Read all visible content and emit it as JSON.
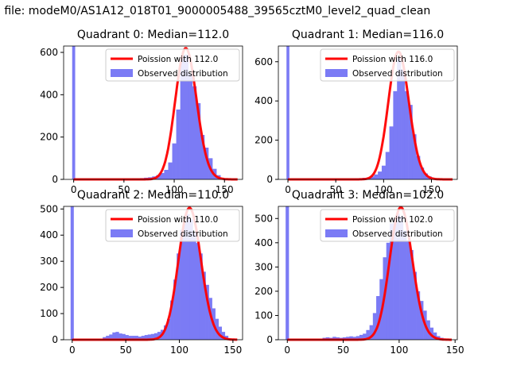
{
  "figure": {
    "suptitle": "n file: modeM0/AS1A12_018T01_9000005488_39565cztM0_level2_quad_clean"
  },
  "colors": {
    "hist": "#7b7bf5",
    "fit": "#ff0000",
    "axis": "#000000"
  },
  "chart_data": [
    {
      "type": "bar",
      "title": "Quadrant 0: Median=112.0",
      "xlim": [
        -10,
        168
      ],
      "ylim": [
        0,
        630
      ],
      "xticks": [
        0,
        50,
        100,
        150
      ],
      "yticks": [
        0,
        200,
        400,
        600
      ],
      "legend": {
        "placement": "top-right",
        "entries": [
          "Poission with 112.0",
          "Observed distribution"
        ]
      },
      "median": 112.0,
      "bin_width": 4,
      "spike": {
        "x": 0,
        "value": 630
      },
      "hist": [
        [
          60,
          3
        ],
        [
          64,
          4
        ],
        [
          68,
          6
        ],
        [
          72,
          8
        ],
        [
          76,
          10
        ],
        [
          80,
          14
        ],
        [
          84,
          20
        ],
        [
          88,
          30
        ],
        [
          92,
          45
        ],
        [
          96,
          80
        ],
        [
          100,
          170
        ],
        [
          104,
          330
        ],
        [
          108,
          580
        ],
        [
          112,
          590
        ],
        [
          116,
          500
        ],
        [
          120,
          440
        ],
        [
          124,
          360
        ],
        [
          128,
          210
        ],
        [
          132,
          150
        ],
        [
          136,
          100
        ],
        [
          140,
          50
        ],
        [
          144,
          20
        ],
        [
          148,
          6
        ]
      ],
      "fit_series": "Poission with 112.0"
    },
    {
      "type": "bar",
      "title": "Quadrant 1: Median=116.0",
      "xlim": [
        -10,
        177
      ],
      "ylim": [
        0,
        680
      ],
      "xticks": [
        0,
        50,
        100,
        150
      ],
      "yticks": [
        0,
        200,
        400,
        600
      ],
      "legend": {
        "placement": "top-right",
        "entries": [
          "Poission with 116.0",
          "Observed distribution"
        ]
      },
      "median": 116.0,
      "bin_width": 4,
      "spike": {
        "x": 0,
        "value": 680
      },
      "hist": [
        [
          68,
          3
        ],
        [
          72,
          5
        ],
        [
          76,
          6
        ],
        [
          80,
          8
        ],
        [
          84,
          10
        ],
        [
          88,
          15
        ],
        [
          92,
          25
        ],
        [
          96,
          40
        ],
        [
          100,
          70
        ],
        [
          104,
          140
        ],
        [
          108,
          270
        ],
        [
          112,
          450
        ],
        [
          116,
          620
        ],
        [
          120,
          560
        ],
        [
          124,
          450
        ],
        [
          128,
          380
        ],
        [
          132,
          230
        ],
        [
          136,
          120
        ],
        [
          140,
          60
        ],
        [
          144,
          30
        ],
        [
          148,
          15
        ]
      ],
      "fit_series": "Poission with 116.0"
    },
    {
      "type": "bar",
      "title": "Quadrant 2: Median=110.0",
      "xlim": [
        -8,
        159
      ],
      "ylim": [
        0,
        510
      ],
      "xticks": [
        0,
        50,
        100,
        150
      ],
      "yticks": [
        0,
        100,
        200,
        300,
        400,
        500
      ],
      "legend": {
        "placement": "top-right",
        "entries": [
          "Poission with 110.0",
          "Observed distribution"
        ]
      },
      "median": 110.0,
      "bin_width": 3,
      "spike": {
        "x": 0,
        "value": 510
      },
      "hist": [
        [
          30,
          10
        ],
        [
          33,
          15
        ],
        [
          36,
          20
        ],
        [
          39,
          28
        ],
        [
          42,
          30
        ],
        [
          45,
          24
        ],
        [
          48,
          22
        ],
        [
          51,
          18
        ],
        [
          54,
          15
        ],
        [
          57,
          15
        ],
        [
          60,
          15
        ],
        [
          63,
          12
        ],
        [
          66,
          15
        ],
        [
          69,
          18
        ],
        [
          72,
          20
        ],
        [
          75,
          22
        ],
        [
          78,
          25
        ],
        [
          81,
          30
        ],
        [
          84,
          38
        ],
        [
          87,
          55
        ],
        [
          90,
          80
        ],
        [
          93,
          150
        ],
        [
          96,
          230
        ],
        [
          99,
          330
        ],
        [
          102,
          420
        ],
        [
          105,
          450
        ],
        [
          108,
          480
        ],
        [
          111,
          460
        ],
        [
          114,
          410
        ],
        [
          117,
          370
        ],
        [
          120,
          330
        ],
        [
          123,
          260
        ],
        [
          126,
          210
        ],
        [
          129,
          160
        ],
        [
          132,
          120
        ],
        [
          135,
          80
        ],
        [
          138,
          50
        ],
        [
          141,
          30
        ],
        [
          144,
          15
        ],
        [
          147,
          5
        ]
      ],
      "fit_series": "Poission with 110.0"
    },
    {
      "type": "bar",
      "title": "Quadrant 3: Median=102.0",
      "xlim": [
        -8,
        152
      ],
      "ylim": [
        0,
        550
      ],
      "xticks": [
        0,
        50,
        100,
        150
      ],
      "yticks": [
        0,
        100,
        200,
        300,
        400,
        500
      ],
      "legend": {
        "placement": "top-right",
        "entries": [
          "Poission with 102.0",
          "Observed distribution"
        ]
      },
      "median": 102.0,
      "bin_width": 3,
      "spike": {
        "x": 0,
        "value": 550
      },
      "hist": [
        [
          33,
          8
        ],
        [
          36,
          10
        ],
        [
          39,
          8
        ],
        [
          42,
          12
        ],
        [
          45,
          10
        ],
        [
          48,
          8
        ],
        [
          51,
          10
        ],
        [
          54,
          12
        ],
        [
          57,
          14
        ],
        [
          60,
          12
        ],
        [
          63,
          15
        ],
        [
          66,
          20
        ],
        [
          69,
          25
        ],
        [
          72,
          40
        ],
        [
          75,
          60
        ],
        [
          78,
          110
        ],
        [
          81,
          180
        ],
        [
          84,
          250
        ],
        [
          87,
          340
        ],
        [
          90,
          400
        ],
        [
          93,
          480
        ],
        [
          96,
          500
        ],
        [
          99,
          520
        ],
        [
          102,
          510
        ],
        [
          105,
          450
        ],
        [
          108,
          410
        ],
        [
          111,
          370
        ],
        [
          114,
          280
        ],
        [
          117,
          200
        ],
        [
          120,
          160
        ],
        [
          123,
          120
        ],
        [
          126,
          80
        ],
        [
          129,
          50
        ],
        [
          132,
          30
        ],
        [
          135,
          15
        ],
        [
          138,
          8
        ],
        [
          141,
          4
        ]
      ],
      "fit_series": "Poission with 102.0"
    }
  ]
}
